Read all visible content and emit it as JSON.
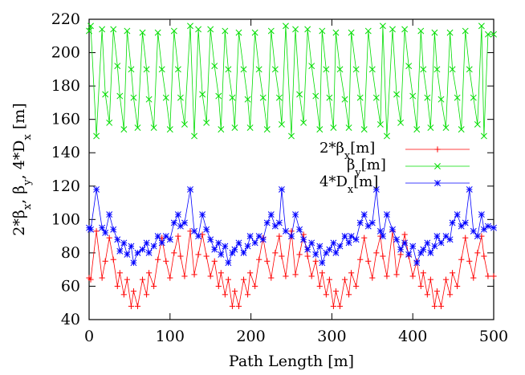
{
  "chart_data": {
    "type": "line",
    "xlabel": "Path Length [m]",
    "ylabel": "2*βx, βy, 4*Dx [m]",
    "xlim": [
      0,
      500
    ],
    "ylim": [
      40,
      220
    ],
    "xticks": [
      0,
      100,
      200,
      300,
      400,
      500
    ],
    "yticks": [
      40,
      60,
      80,
      100,
      120,
      140,
      160,
      180,
      200,
      220
    ],
    "grid": false,
    "legend": {
      "position": "right",
      "entries": [
        "2*βx[m]",
        "βy[m]",
        "4*Dx[m]"
      ]
    },
    "series": [
      {
        "name": "2*βx[m]",
        "color": "#ff0000",
        "marker": "plus",
        "x": [
          0,
          2,
          9,
          16,
          20,
          25,
          30,
          35,
          38,
          43,
          47,
          52,
          55,
          60,
          66,
          71,
          74,
          80,
          85,
          90,
          95,
          100,
          105,
          110,
          113,
          118,
          125,
          130,
          135,
          140,
          145,
          150,
          155,
          160,
          163,
          168,
          172,
          177,
          180,
          185,
          191,
          196,
          199,
          205,
          210,
          215,
          220,
          225,
          230,
          235,
          238,
          243,
          250,
          255,
          260,
          265,
          270,
          275,
          280,
          285,
          288,
          293,
          297,
          302,
          305,
          310,
          316,
          321,
          324,
          330,
          335,
          340,
          345,
          350,
          355,
          360,
          363,
          368,
          375,
          380,
          385,
          390,
          395,
          400,
          405,
          410,
          413,
          418,
          422,
          427,
          430,
          435,
          441,
          446,
          449,
          455,
          460,
          465,
          470,
          475,
          480,
          485,
          488,
          493,
          500
        ],
        "y": [
          65,
          64,
          93,
          65,
          75,
          89,
          76,
          60,
          68,
          55,
          64,
          48,
          57,
          48,
          64,
          55,
          68,
          60,
          76,
          89,
          75,
          65,
          80,
          90,
          78,
          66,
          93,
          67,
          79,
          91,
          78,
          66,
          75,
          60,
          68,
          55,
          64,
          48,
          57,
          48,
          64,
          55,
          68,
          60,
          76,
          89,
          75,
          65,
          80,
          90,
          78,
          66,
          93,
          67,
          79,
          91,
          78,
          66,
          75,
          60,
          68,
          55,
          64,
          48,
          57,
          48,
          64,
          55,
          68,
          60,
          76,
          89,
          75,
          65,
          80,
          90,
          78,
          66,
          93,
          67,
          79,
          91,
          78,
          66,
          75,
          60,
          68,
          55,
          64,
          48,
          57,
          48,
          64,
          55,
          68,
          60,
          76,
          89,
          75,
          65,
          80,
          90,
          78,
          66,
          66
        ]
      },
      {
        "name": "βy[m]",
        "color": "#00dd00",
        "marker": "cross",
        "x": [
          0,
          2,
          9,
          16,
          20,
          25,
          30,
          35,
          38,
          43,
          47,
          52,
          55,
          60,
          66,
          71,
          74,
          80,
          85,
          90,
          95,
          100,
          105,
          110,
          113,
          118,
          125,
          130,
          135,
          140,
          145,
          150,
          155,
          160,
          163,
          168,
          172,
          177,
          180,
          185,
          191,
          196,
          199,
          205,
          210,
          215,
          220,
          225,
          230,
          235,
          238,
          243,
          250,
          255,
          260,
          265,
          270,
          275,
          280,
          285,
          288,
          293,
          297,
          302,
          305,
          310,
          316,
          321,
          324,
          330,
          335,
          340,
          345,
          350,
          355,
          360,
          363,
          368,
          375,
          380,
          385,
          390,
          395,
          400,
          405,
          410,
          413,
          418,
          422,
          427,
          430,
          435,
          441,
          446,
          449,
          455,
          460,
          465,
          470,
          475,
          480,
          485,
          488,
          493,
          500
        ],
        "y": [
          213,
          216,
          150,
          214,
          175,
          158,
          214,
          192,
          174,
          154,
          213,
          190,
          173,
          155,
          212,
          190,
          172,
          155,
          212,
          190,
          173,
          154,
          213,
          190,
          173,
          157,
          216,
          150,
          214,
          175,
          158,
          214,
          192,
          174,
          154,
          213,
          190,
          173,
          155,
          212,
          190,
          172,
          155,
          212,
          190,
          173,
          154,
          213,
          190,
          173,
          157,
          216,
          150,
          214,
          175,
          158,
          214,
          192,
          174,
          154,
          213,
          190,
          173,
          155,
          212,
          190,
          172,
          155,
          212,
          190,
          173,
          154,
          213,
          190,
          173,
          157,
          216,
          150,
          214,
          175,
          158,
          214,
          192,
          174,
          154,
          213,
          190,
          173,
          155,
          212,
          190,
          172,
          155,
          212,
          190,
          173,
          154,
          213,
          190,
          173,
          157,
          216,
          150,
          211,
          211
        ]
      },
      {
        "name": "4*Dx[m]",
        "color": "#0000ff",
        "marker": "star",
        "x": [
          0,
          2,
          9,
          16,
          20,
          25,
          30,
          35,
          38,
          43,
          47,
          52,
          55,
          60,
          66,
          71,
          74,
          80,
          85,
          90,
          95,
          100,
          105,
          110,
          113,
          118,
          125,
          130,
          135,
          140,
          145,
          150,
          155,
          160,
          163,
          168,
          172,
          177,
          180,
          185,
          191,
          196,
          199,
          205,
          210,
          215,
          220,
          225,
          230,
          235,
          238,
          243,
          250,
          255,
          260,
          265,
          270,
          275,
          280,
          285,
          288,
          293,
          297,
          302,
          305,
          310,
          316,
          321,
          324,
          330,
          335,
          340,
          345,
          350,
          355,
          360,
          363,
          368,
          375,
          380,
          385,
          390,
          395,
          400,
          405,
          410,
          413,
          418,
          422,
          427,
          430,
          435,
          441,
          446,
          449,
          455,
          460,
          465,
          470,
          475,
          480,
          485,
          488,
          493,
          500
        ],
        "y": [
          95,
          94,
          118,
          95,
          92,
          103,
          94,
          88,
          81,
          86,
          79,
          84,
          74,
          80,
          82,
          86,
          80,
          84,
          90,
          86,
          90,
          88,
          98,
          103,
          96,
          98,
          118,
          93,
          90,
          103,
          94,
          88,
          82,
          86,
          79,
          84,
          74,
          80,
          82,
          86,
          80,
          84,
          90,
          86,
          90,
          88,
          98,
          103,
          96,
          98,
          118,
          93,
          90,
          103,
          94,
          88,
          82,
          86,
          79,
          84,
          74,
          80,
          82,
          86,
          80,
          84,
          90,
          86,
          90,
          88,
          98,
          103,
          96,
          98,
          118,
          93,
          90,
          103,
          94,
          88,
          82,
          86,
          79,
          84,
          74,
          80,
          82,
          86,
          80,
          84,
          90,
          86,
          90,
          88,
          98,
          103,
          96,
          98,
          118,
          93,
          90,
          103,
          94,
          96,
          95
        ]
      }
    ]
  }
}
